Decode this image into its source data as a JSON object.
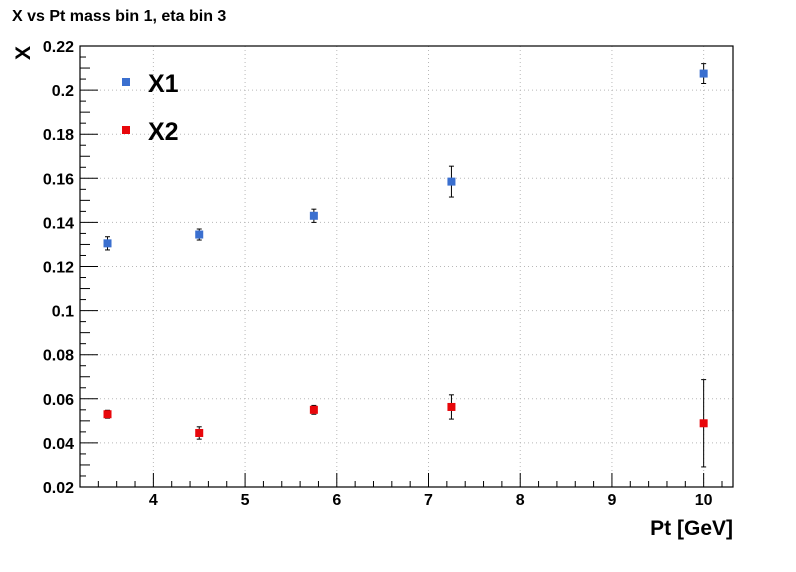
{
  "chart_data": {
    "type": "scatter",
    "title": "X vs Pt mass bin 1, eta bin 3",
    "xlabel": "Pt [GeV]",
    "ylabel": "X",
    "xlim": [
      3.2,
      10.32
    ],
    "ylim": [
      0.02,
      0.22
    ],
    "xticks": [
      4,
      5,
      6,
      7,
      8,
      9,
      10
    ],
    "yticks": [
      0.02,
      0.04,
      0.06,
      0.08,
      0.1,
      0.12,
      0.14,
      0.16,
      0.18,
      0.2,
      0.22
    ],
    "grid": true,
    "legend_position": "top-left",
    "series": [
      {
        "name": "X1",
        "color": "#3a6fcf",
        "marker": "square",
        "points": [
          {
            "x": 3.5,
            "y": 0.1305,
            "err": 0.003
          },
          {
            "x": 4.5,
            "y": 0.1345,
            "err": 0.0025
          },
          {
            "x": 5.75,
            "y": 0.143,
            "err": 0.003
          },
          {
            "x": 7.25,
            "y": 0.1585,
            "err": 0.007
          },
          {
            "x": 10.0,
            "y": 0.2075,
            "err": 0.0045
          }
        ]
      },
      {
        "name": "X2",
        "color": "#e8070b",
        "marker": "square",
        "points": [
          {
            "x": 3.5,
            "y": 0.053,
            "err": 0.0018
          },
          {
            "x": 4.5,
            "y": 0.0445,
            "err": 0.0028
          },
          {
            "x": 5.75,
            "y": 0.055,
            "err": 0.002
          },
          {
            "x": 7.25,
            "y": 0.0563,
            "err": 0.0055
          },
          {
            "x": 10.0,
            "y": 0.0489,
            "err": 0.0198
          }
        ]
      }
    ]
  }
}
